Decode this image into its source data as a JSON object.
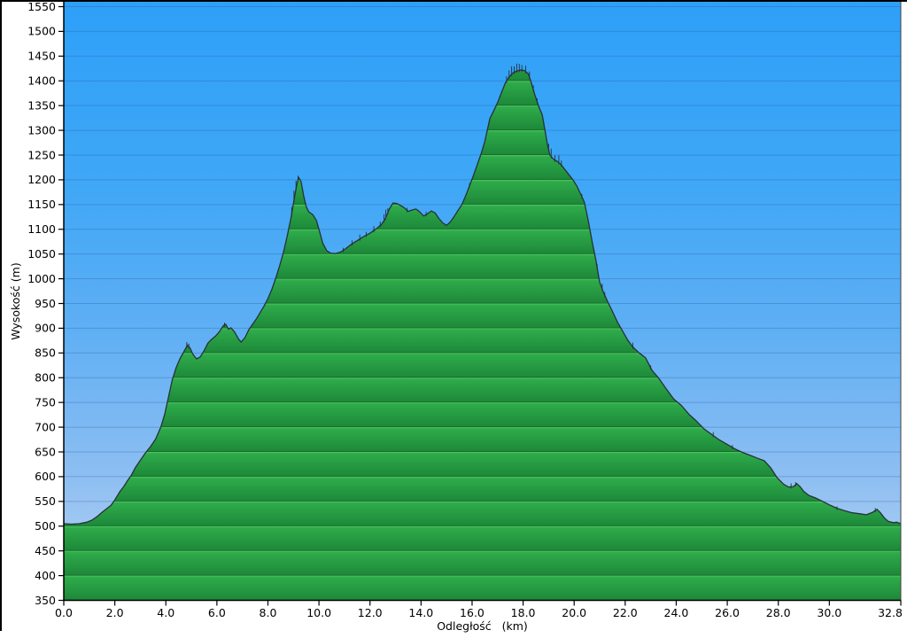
{
  "chart_data": {
    "type": "area",
    "title": "",
    "xlabel": "Odległość   (km)",
    "ylabel": "Wysokość (m)",
    "xlim": [
      0,
      32.8
    ],
    "ylim": [
      350,
      1550
    ],
    "grid": true,
    "legend": false,
    "x_ticks": [
      {
        "v": 0.0,
        "label": "0.0"
      },
      {
        "v": 2.0,
        "label": "2.0"
      },
      {
        "v": 4.0,
        "label": "4.0"
      },
      {
        "v": 6.0,
        "label": "6.0"
      },
      {
        "v": 8.0,
        "label": "8.0"
      },
      {
        "v": 10.0,
        "label": "10.0"
      },
      {
        "v": 12.0,
        "label": "12.0"
      },
      {
        "v": 14.0,
        "label": "14.0"
      },
      {
        "v": 16.0,
        "label": "16.0"
      },
      {
        "v": 18.0,
        "label": "18.0"
      },
      {
        "v": 20.0,
        "label": "20.0"
      },
      {
        "v": 22.0,
        "label": "22.0"
      },
      {
        "v": 24.0,
        "label": "24.0"
      },
      {
        "v": 26.0,
        "label": "26.0"
      },
      {
        "v": 28.0,
        "label": "28.0"
      },
      {
        "v": 30.0,
        "label": "30.0"
      },
      {
        "v": 32.8,
        "label": "32.8"
      }
    ],
    "y_ticks": [
      {
        "v": 350,
        "label": "350"
      },
      {
        "v": 400,
        "label": "400"
      },
      {
        "v": 450,
        "label": "450"
      },
      {
        "v": 500,
        "label": "500"
      },
      {
        "v": 550,
        "label": "550"
      },
      {
        "v": 600,
        "label": "600"
      },
      {
        "v": 650,
        "label": "650"
      },
      {
        "v": 700,
        "label": "700"
      },
      {
        "v": 750,
        "label": "750"
      },
      {
        "v": 800,
        "label": "800"
      },
      {
        "v": 850,
        "label": "850"
      },
      {
        "v": 900,
        "label": "900"
      },
      {
        "v": 950,
        "label": "950"
      },
      {
        "v": 1000,
        "label": "1000"
      },
      {
        "v": 1050,
        "label": "1050"
      },
      {
        "v": 1100,
        "label": "1100"
      },
      {
        "v": 1150,
        "label": "1150"
      },
      {
        "v": 1200,
        "label": "1200"
      },
      {
        "v": 1250,
        "label": "1250"
      },
      {
        "v": 1300,
        "label": "1300"
      },
      {
        "v": 1350,
        "label": "1350"
      },
      {
        "v": 1400,
        "label": "1400"
      },
      {
        "v": 1450,
        "label": "1450"
      },
      {
        "v": 1500,
        "label": "1500"
      },
      {
        "v": 1550,
        "label": "1550"
      }
    ],
    "series": [
      {
        "name": "elevation_profile",
        "x_unit": "km",
        "y_unit": "m",
        "points": [
          [
            0.0,
            505
          ],
          [
            0.3,
            504
          ],
          [
            0.6,
            505
          ],
          [
            0.9,
            508
          ],
          [
            1.1,
            512
          ],
          [
            1.3,
            519
          ],
          [
            1.5,
            528
          ],
          [
            1.7,
            536
          ],
          [
            1.85,
            542
          ],
          [
            2.0,
            553
          ],
          [
            2.2,
            570
          ],
          [
            2.35,
            580
          ],
          [
            2.5,
            592
          ],
          [
            2.65,
            603
          ],
          [
            2.8,
            618
          ],
          [
            3.0,
            633
          ],
          [
            3.2,
            648
          ],
          [
            3.4,
            661
          ],
          [
            3.6,
            676
          ],
          [
            3.8,
            700
          ],
          [
            3.95,
            725
          ],
          [
            4.1,
            760
          ],
          [
            4.25,
            795
          ],
          [
            4.4,
            820
          ],
          [
            4.55,
            838
          ],
          [
            4.7,
            852
          ],
          [
            4.85,
            866
          ],
          [
            4.95,
            860
          ],
          [
            5.05,
            848
          ],
          [
            5.2,
            838
          ],
          [
            5.35,
            842
          ],
          [
            5.5,
            855
          ],
          [
            5.65,
            870
          ],
          [
            5.8,
            878
          ],
          [
            5.95,
            884
          ],
          [
            6.1,
            893
          ],
          [
            6.25,
            905
          ],
          [
            6.35,
            908
          ],
          [
            6.45,
            898
          ],
          [
            6.55,
            901
          ],
          [
            6.7,
            892
          ],
          [
            6.85,
            878
          ],
          [
            6.95,
            872
          ],
          [
            7.1,
            881
          ],
          [
            7.25,
            897
          ],
          [
            7.4,
            908
          ],
          [
            7.55,
            919
          ],
          [
            7.7,
            932
          ],
          [
            7.85,
            945
          ],
          [
            8.0,
            960
          ],
          [
            8.15,
            978
          ],
          [
            8.3,
            1000
          ],
          [
            8.45,
            1025
          ],
          [
            8.6,
            1052
          ],
          [
            8.75,
            1085
          ],
          [
            8.9,
            1122
          ],
          [
            9.0,
            1152
          ],
          [
            9.1,
            1182
          ],
          [
            9.2,
            1205
          ],
          [
            9.3,
            1196
          ],
          [
            9.4,
            1168
          ],
          [
            9.5,
            1146
          ],
          [
            9.6,
            1135
          ],
          [
            9.75,
            1130
          ],
          [
            9.9,
            1118
          ],
          [
            10.0,
            1100
          ],
          [
            10.15,
            1072
          ],
          [
            10.3,
            1057
          ],
          [
            10.45,
            1052
          ],
          [
            10.65,
            1051
          ],
          [
            10.85,
            1054
          ],
          [
            11.05,
            1061
          ],
          [
            11.25,
            1069
          ],
          [
            11.5,
            1077
          ],
          [
            11.75,
            1085
          ],
          [
            12.0,
            1092
          ],
          [
            12.25,
            1101
          ],
          [
            12.45,
            1110
          ],
          [
            12.6,
            1121
          ],
          [
            12.75,
            1140
          ],
          [
            12.9,
            1153
          ],
          [
            13.05,
            1152
          ],
          [
            13.2,
            1148
          ],
          [
            13.35,
            1143
          ],
          [
            13.5,
            1136
          ],
          [
            13.65,
            1139
          ],
          [
            13.8,
            1141
          ],
          [
            13.95,
            1135
          ],
          [
            14.1,
            1127
          ],
          [
            14.25,
            1131
          ],
          [
            14.4,
            1137
          ],
          [
            14.55,
            1133
          ],
          [
            14.7,
            1122
          ],
          [
            14.85,
            1113
          ],
          [
            15.0,
            1108
          ],
          [
            15.15,
            1115
          ],
          [
            15.3,
            1126
          ],
          [
            15.45,
            1138
          ],
          [
            15.6,
            1150
          ],
          [
            15.75,
            1168
          ],
          [
            15.9,
            1188
          ],
          [
            16.05,
            1208
          ],
          [
            16.2,
            1230
          ],
          [
            16.35,
            1252
          ],
          [
            16.5,
            1278
          ],
          [
            16.7,
            1324
          ],
          [
            16.85,
            1340
          ],
          [
            17.0,
            1356
          ],
          [
            17.15,
            1376
          ],
          [
            17.3,
            1395
          ],
          [
            17.45,
            1408
          ],
          [
            17.6,
            1416
          ],
          [
            17.75,
            1420
          ],
          [
            17.9,
            1422
          ],
          [
            18.05,
            1421
          ],
          [
            18.2,
            1414
          ],
          [
            18.3,
            1400
          ],
          [
            18.45,
            1373
          ],
          [
            18.6,
            1350
          ],
          [
            18.75,
            1331
          ],
          [
            18.85,
            1302
          ],
          [
            18.95,
            1272
          ],
          [
            19.05,
            1250
          ],
          [
            19.2,
            1241
          ],
          [
            19.35,
            1237
          ],
          [
            19.5,
            1230
          ],
          [
            19.65,
            1220
          ],
          [
            19.8,
            1210
          ],
          [
            19.95,
            1200
          ],
          [
            20.1,
            1188
          ],
          [
            20.25,
            1172
          ],
          [
            20.4,
            1155
          ],
          [
            20.55,
            1118
          ],
          [
            20.7,
            1076
          ],
          [
            20.85,
            1038
          ],
          [
            21.0,
            993
          ],
          [
            21.15,
            972
          ],
          [
            21.3,
            955
          ],
          [
            21.5,
            934
          ],
          [
            21.7,
            912
          ],
          [
            21.9,
            894
          ],
          [
            22.1,
            876
          ],
          [
            22.3,
            862
          ],
          [
            22.55,
            850
          ],
          [
            22.8,
            840
          ],
          [
            23.05,
            815
          ],
          [
            23.3,
            800
          ],
          [
            23.6,
            778
          ],
          [
            23.9,
            757
          ],
          [
            24.2,
            744
          ],
          [
            24.5,
            726
          ],
          [
            24.8,
            712
          ],
          [
            25.1,
            696
          ],
          [
            25.4,
            685
          ],
          [
            25.7,
            674
          ],
          [
            26.0,
            665
          ],
          [
            26.3,
            656
          ],
          [
            26.6,
            649
          ],
          [
            26.9,
            643
          ],
          [
            27.2,
            637
          ],
          [
            27.45,
            632
          ],
          [
            27.7,
            618
          ],
          [
            27.95,
            598
          ],
          [
            28.2,
            585
          ],
          [
            28.4,
            579
          ],
          [
            28.6,
            580
          ],
          [
            28.72,
            586
          ],
          [
            28.85,
            580
          ],
          [
            29.0,
            570
          ],
          [
            29.2,
            562
          ],
          [
            29.45,
            557
          ],
          [
            29.7,
            551
          ],
          [
            30.0,
            543
          ],
          [
            30.3,
            536
          ],
          [
            30.6,
            531
          ],
          [
            30.9,
            527
          ],
          [
            31.2,
            525
          ],
          [
            31.45,
            523
          ],
          [
            31.7,
            528
          ],
          [
            31.87,
            534
          ],
          [
            32.0,
            527
          ],
          [
            32.15,
            517
          ],
          [
            32.3,
            510
          ],
          [
            32.5,
            507
          ],
          [
            32.65,
            508
          ],
          [
            32.8,
            505
          ]
        ]
      }
    ],
    "noise_spikes": [
      [
        4.82,
        9
      ],
      [
        4.9,
        6
      ],
      [
        6.3,
        5
      ],
      [
        8.93,
        14
      ],
      [
        9.02,
        20
      ],
      [
        9.1,
        16
      ],
      [
        9.18,
        8
      ],
      [
        10.95,
        5
      ],
      [
        11.3,
        7
      ],
      [
        11.6,
        9
      ],
      [
        11.85,
        7
      ],
      [
        12.15,
        9
      ],
      [
        12.4,
        8
      ],
      [
        12.55,
        13
      ],
      [
        12.62,
        16
      ],
      [
        12.7,
        9
      ],
      [
        13.45,
        5
      ],
      [
        14.2,
        6
      ],
      [
        15.9,
        5
      ],
      [
        17.35,
        10
      ],
      [
        17.45,
        13
      ],
      [
        17.55,
        16
      ],
      [
        17.65,
        12
      ],
      [
        17.75,
        15
      ],
      [
        17.85,
        13
      ],
      [
        17.95,
        10
      ],
      [
        18.1,
        12
      ],
      [
        18.25,
        12
      ],
      [
        18.4,
        9
      ],
      [
        18.55,
        7
      ],
      [
        19.0,
        12
      ],
      [
        19.1,
        16
      ],
      [
        19.25,
        10
      ],
      [
        19.4,
        15
      ],
      [
        19.5,
        9
      ],
      [
        20.3,
        5
      ],
      [
        20.9,
        7
      ],
      [
        21.1,
        11
      ],
      [
        21.2,
        7
      ],
      [
        22.3,
        9
      ],
      [
        23.0,
        5
      ],
      [
        25.45,
        7
      ],
      [
        26.2,
        5
      ],
      [
        28.5,
        7
      ],
      [
        28.68,
        5
      ],
      [
        30.3,
        4
      ],
      [
        31.8,
        5
      ]
    ],
    "colors": {
      "sky_top": "#2EA0F8",
      "sky_mid": "#5FAFF4",
      "sky_bottom": "#BAD6F2",
      "gridline": "rgba(40,80,150,0.30)",
      "terrain_band_light": "#3FBC55",
      "terrain_band_dark": "#1D8838",
      "terrain_band_edge": "#14632A",
      "terrain_outline": "#263238",
      "axis": "#000000"
    }
  }
}
